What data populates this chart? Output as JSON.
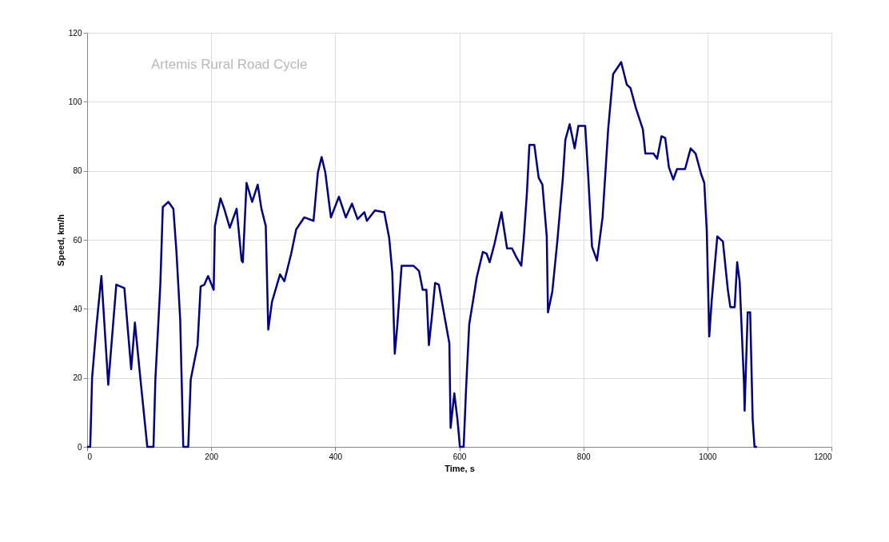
{
  "chart_data": {
    "type": "line",
    "annotations": [
      "Artemis Rural Road Cycle"
    ],
    "xlabel": "Time, s",
    "ylabel": "Speed, km/h",
    "xlim": [
      0,
      1200
    ],
    "xticks": [
      0,
      200,
      400,
      600,
      800,
      1000,
      1200
    ],
    "ylim": [
      0,
      120
    ],
    "yticks": [
      0,
      20,
      40,
      60,
      80,
      100,
      120
    ],
    "grid": true,
    "series": [
      {
        "color": "#000080",
        "x": [
          0,
          5,
          8,
          15,
          23,
          34,
          47,
          60,
          71,
          77,
          86,
          97,
          107,
          110,
          118,
          122,
          131,
          139,
          144,
          150,
          155,
          163,
          167,
          178,
          183,
          189,
          195,
          204,
          206,
          215,
          221,
          230,
          241,
          249,
          251,
          257,
          266,
          275,
          281,
          288,
          292,
          298,
          311,
          318,
          329,
          337,
          350,
          365,
          372,
          378,
          384,
          393,
          406,
          417,
          427,
          436,
          447,
          451,
          464,
          479,
          487,
          492,
          496,
          500,
          507,
          526,
          535,
          541,
          547,
          551,
          556,
          561,
          567,
          580,
          584,
          586,
          592,
          597,
          601,
          607,
          611,
          616,
          625,
          628,
          638,
          644,
          649,
          657,
          668,
          677,
          685,
          692,
          700,
          704,
          709,
          713,
          721,
          728,
          734,
          741,
          743,
          750,
          758,
          767,
          771,
          778,
          786,
          792,
          803,
          808,
          814,
          822,
          831,
          840,
          848,
          861,
          870,
          876,
          885,
          896,
          900,
          913,
          919,
          926,
          932,
          938,
          945,
          951,
          964,
          973,
          981,
          990,
          995,
          999,
          1003,
          1007,
          1016,
          1025,
          1033,
          1037,
          1044,
          1048,
          1052,
          1059,
          1060,
          1065,
          1069,
          1073,
          1076,
          1080
        ],
        "values": [
          0,
          0,
          20,
          35,
          49.5,
          18,
          47,
          46,
          22.5,
          36,
          19.5,
          0,
          0,
          19.5,
          47,
          69.5,
          71,
          69,
          56.5,
          37,
          0,
          0,
          19.5,
          29.5,
          46.5,
          47,
          49.5,
          45.5,
          64,
          72,
          69,
          63.5,
          69,
          54,
          53.5,
          76.5,
          71,
          76,
          69,
          64,
          34,
          42,
          50,
          48,
          56,
          63,
          66.5,
          65.5,
          79.5,
          84,
          79.5,
          66.5,
          72.5,
          66.5,
          70.5,
          66,
          68,
          65.5,
          68.5,
          68,
          60.5,
          50.5,
          27,
          35,
          52.5,
          52.5,
          51,
          45.5,
          45.5,
          29.5,
          38,
          47.5,
          47,
          34,
          30,
          5.5,
          15.5,
          8,
          0,
          0,
          17,
          35.5,
          45.5,
          49,
          56.5,
          56,
          53.5,
          59,
          68,
          57.5,
          57.5,
          55,
          52.5,
          60.5,
          73.5,
          87.5,
          87.5,
          78,
          76,
          61,
          39,
          45,
          59.5,
          78,
          89,
          93.5,
          86.5,
          93,
          93,
          78,
          58,
          54,
          66.5,
          92,
          108,
          111.5,
          105,
          104,
          98,
          92,
          85,
          85,
          83.5,
          90,
          89.5,
          81,
          77.5,
          80.5,
          80.5,
          86.5,
          85,
          79,
          76.5,
          62.5,
          32,
          42.5,
          61,
          59.5,
          45.5,
          40.5,
          40.5,
          53.5,
          48,
          18.5,
          10.5,
          39,
          39,
          8,
          0,
          0
        ]
      }
    ]
  }
}
